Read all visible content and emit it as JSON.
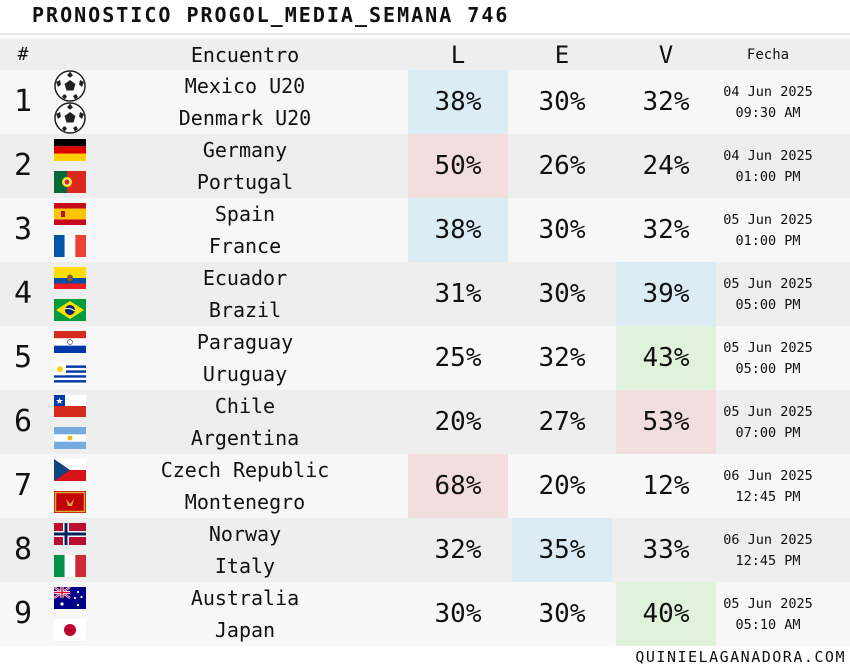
{
  "title": "PRONOSTICO PROGOL_MEDIA_SEMANA 746",
  "header": {
    "num": "#",
    "encuentro": "Encuentro",
    "l": "L",
    "e": "E",
    "v": "V",
    "fecha": "Fecha"
  },
  "colors": {
    "blue": "#dcecf5",
    "red": "#f3dede",
    "green": "#e0f1dc"
  },
  "matches": [
    {
      "num": "1",
      "home": "Mexico U20",
      "away": "Denmark U20",
      "home_flag": "soccer-ball-icon",
      "away_flag": "soccer-ball-icon",
      "l": "38%",
      "e": "30%",
      "v": "32%",
      "highlight": "l",
      "highlight_color": "blue",
      "date": "04 Jun 2025",
      "time": "09:30 AM"
    },
    {
      "num": "2",
      "home": "Germany",
      "away": "Portugal",
      "home_flag": "germany-flag-icon",
      "away_flag": "portugal-flag-icon",
      "l": "50%",
      "e": "26%",
      "v": "24%",
      "highlight": "l",
      "highlight_color": "red",
      "date": "04 Jun 2025",
      "time": "01:00 PM"
    },
    {
      "num": "3",
      "home": "Spain",
      "away": "France",
      "home_flag": "spain-flag-icon",
      "away_flag": "france-flag-icon",
      "l": "38%",
      "e": "30%",
      "v": "32%",
      "highlight": "l",
      "highlight_color": "blue",
      "date": "05 Jun 2025",
      "time": "01:00 PM"
    },
    {
      "num": "4",
      "home": "Ecuador",
      "away": "Brazil",
      "home_flag": "ecuador-flag-icon",
      "away_flag": "brazil-flag-icon",
      "l": "31%",
      "e": "30%",
      "v": "39%",
      "highlight": "v",
      "highlight_color": "blue",
      "date": "05 Jun 2025",
      "time": "05:00 PM"
    },
    {
      "num": "5",
      "home": "Paraguay",
      "away": "Uruguay",
      "home_flag": "paraguay-flag-icon",
      "away_flag": "uruguay-flag-icon",
      "l": "25%",
      "e": "32%",
      "v": "43%",
      "highlight": "v",
      "highlight_color": "green",
      "date": "05 Jun 2025",
      "time": "05:00 PM"
    },
    {
      "num": "6",
      "home": "Chile",
      "away": "Argentina",
      "home_flag": "chile-flag-icon",
      "away_flag": "argentina-flag-icon",
      "l": "20%",
      "e": "27%",
      "v": "53%",
      "highlight": "v",
      "highlight_color": "red",
      "date": "05 Jun 2025",
      "time": "07:00 PM"
    },
    {
      "num": "7",
      "home": "Czech Republic",
      "away": "Montenegro",
      "home_flag": "czech-republic-flag-icon",
      "away_flag": "montenegro-flag-icon",
      "l": "68%",
      "e": "20%",
      "v": "12%",
      "highlight": "l",
      "highlight_color": "red",
      "date": "06 Jun 2025",
      "time": "12:45 PM"
    },
    {
      "num": "8",
      "home": "Norway",
      "away": "Italy",
      "home_flag": "norway-flag-icon",
      "away_flag": "italy-flag-icon",
      "l": "32%",
      "e": "35%",
      "v": "33%",
      "highlight": "e",
      "highlight_color": "blue",
      "date": "06 Jun 2025",
      "time": "12:45 PM"
    },
    {
      "num": "9",
      "home": "Australia",
      "away": "Japan",
      "home_flag": "australia-flag-icon",
      "away_flag": "japan-flag-icon",
      "l": "30%",
      "e": "30%",
      "v": "40%",
      "highlight": "v",
      "highlight_color": "green",
      "date": "05 Jun 2025",
      "time": "05:10 AM"
    }
  ],
  "footer": "QUINIELAGANADORA.COM"
}
